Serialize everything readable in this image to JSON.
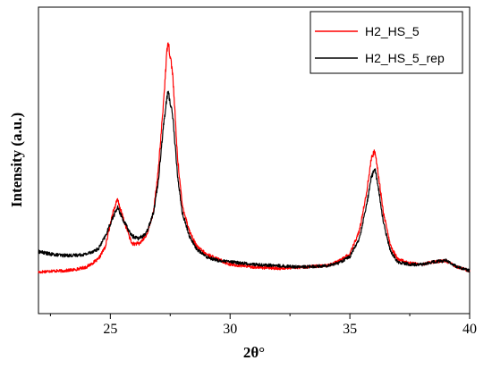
{
  "chart_data": {
    "type": "line",
    "title": "",
    "xlabel": "2θ°",
    "ylabel": "Intensity (a.u.)",
    "xlim": [
      22,
      40
    ],
    "xticks": [
      25,
      30,
      35,
      40
    ],
    "xtick_labels": [
      "25",
      "30",
      "35",
      "40"
    ],
    "minor_xticks": [
      22.5,
      27.5,
      32.5,
      37.5
    ],
    "y_tick_labels_shown": false,
    "ylim": [
      0,
      100
    ],
    "grid": false,
    "legend_position": "top-right",
    "noise_amplitude": 0.5,
    "series": [
      {
        "name": "H2_HS_5",
        "color": "#ff0000",
        "x": [
          22.0,
          22.5,
          23.0,
          23.5,
          24.0,
          24.5,
          24.8,
          25.1,
          25.3,
          25.6,
          25.9,
          26.2,
          26.5,
          26.8,
          27.0,
          27.2,
          27.4,
          27.6,
          27.8,
          28.0,
          28.3,
          28.6,
          29.0,
          29.5,
          30.0,
          31.0,
          32.0,
          33.0,
          34.0,
          34.5,
          35.0,
          35.4,
          35.7,
          35.9,
          36.05,
          36.2,
          36.4,
          36.7,
          37.0,
          37.5,
          38.0,
          38.5,
          39.0,
          39.5,
          40.0
        ],
        "values": [
          7.0,
          7.5,
          7.5,
          8.0,
          9.0,
          12.0,
          17.0,
          30.0,
          35.0,
          26.0,
          18.0,
          18.0,
          21.0,
          30.0,
          46.0,
          70.0,
          97.0,
          84.0,
          52.0,
          33.0,
          23.0,
          17.0,
          14.0,
          12.0,
          10.0,
          9.0,
          8.5,
          9.0,
          9.5,
          11.0,
          14.0,
          23.0,
          38.0,
          51.0,
          54.0,
          44.0,
          30.0,
          17.0,
          12.0,
          10.5,
          10.0,
          11.0,
          11.5,
          9.0,
          7.5
        ]
      },
      {
        "name": "H2_HS_5_rep",
        "color": "#000000",
        "x": [
          22.0,
          22.5,
          23.0,
          23.5,
          24.0,
          24.5,
          24.8,
          25.1,
          25.3,
          25.6,
          25.9,
          26.2,
          26.5,
          26.8,
          27.0,
          27.2,
          27.4,
          27.6,
          27.8,
          28.0,
          28.3,
          28.6,
          29.0,
          29.5,
          30.0,
          31.0,
          32.0,
          33.0,
          34.0,
          34.5,
          35.0,
          35.4,
          35.7,
          35.9,
          36.05,
          36.2,
          36.4,
          36.7,
          37.0,
          37.5,
          38.0,
          38.5,
          39.0,
          39.5,
          40.0
        ],
        "values": [
          15.0,
          14.0,
          13.5,
          13.5,
          14.0,
          16.0,
          21.0,
          28.0,
          32.0,
          26.0,
          21.0,
          20.0,
          22.0,
          30.0,
          42.0,
          62.0,
          77.0,
          68.0,
          45.0,
          30.0,
          21.0,
          16.0,
          13.0,
          11.5,
          11.0,
          10.0,
          9.5,
          9.0,
          9.5,
          10.5,
          13.0,
          20.0,
          33.0,
          44.0,
          47.0,
          39.0,
          26.0,
          15.0,
          11.0,
          10.0,
          10.0,
          11.0,
          11.5,
          9.0,
          7.5
        ]
      }
    ]
  }
}
